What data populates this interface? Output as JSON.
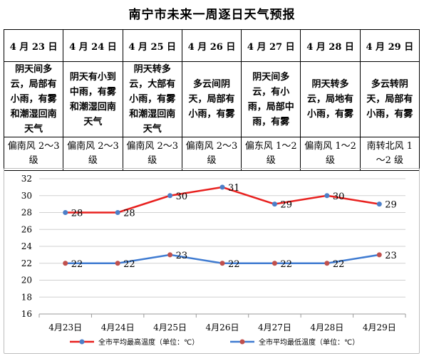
{
  "title": "南宁市未来一周逐日天气预报",
  "forecast": {
    "days": [
      {
        "date": "4 月 23 日",
        "weather": "阴天间多云，局部有小雨，有雾和潮湿回南天气",
        "wind": "偏南风 2～3 级"
      },
      {
        "date": "4 月 24 日",
        "weather": "阴天有小到中雨，有雾和潮湿回南天气",
        "wind": "偏南风 2～3 级"
      },
      {
        "date": "4 月 25 日",
        "weather": "阴天转多云，大部有小雨，有雾和潮湿回南天气",
        "wind": "偏南风 2～3 级"
      },
      {
        "date": "4 月 26 日",
        "weather": "多云间阴天，局部有小雨，有雾",
        "wind": "偏南风 2～3 级"
      },
      {
        "date": "4 月 27 日",
        "weather": "阴天间多云，有小雨，局部中雨，有雾",
        "wind": "偏东风 1～2 级"
      },
      {
        "date": "4 月 28 日",
        "weather": "阴天转多云，局地有小雨，有雾",
        "wind": "偏南风 1～2 级"
      },
      {
        "date": "4 月 29 日",
        "weather": "多云转阴天，局部有小雨，有雾",
        "wind": "南转北风 1～2 级"
      }
    ]
  },
  "chart_data": {
    "type": "line",
    "categories": [
      "4月23日",
      "4月24日",
      "4月25日",
      "4月26日",
      "4月27日",
      "4月28日",
      "4月29日"
    ],
    "series": [
      {
        "name": "全市平均最高温度（单位：℃）",
        "color": "#e8201e",
        "marker": "#4c7fc8",
        "values": [
          28,
          28,
          30,
          31,
          29,
          30,
          29
        ]
      },
      {
        "name": "全市平均最低温度（单位：℃）",
        "color": "#3f7bd1",
        "marker": "#c0504d",
        "values": [
          22,
          22,
          23,
          22,
          22,
          22,
          23
        ]
      }
    ],
    "yticks": [
      "32",
      "30",
      "28",
      "26",
      "24",
      "22",
      "20",
      "18",
      "16"
    ],
    "ylim": [
      16,
      32
    ],
    "grid": true,
    "legend_position": "bottom"
  }
}
